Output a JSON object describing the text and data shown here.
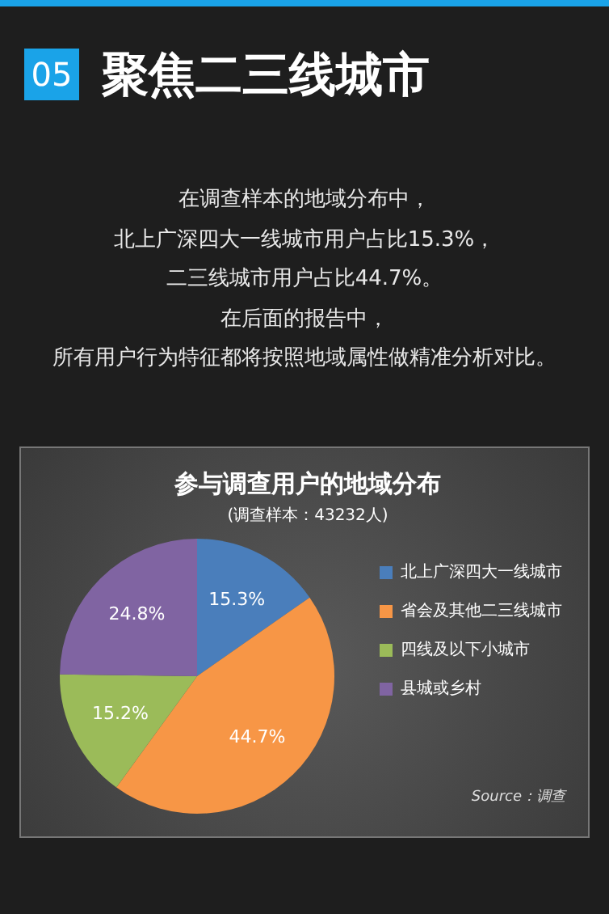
{
  "chart_data": {
    "type": "pie",
    "title": "参与调查用户的地域分布",
    "subtitle": "(调查样本：43232人)",
    "categories": [
      "北上广深四大一线城市",
      "省会及其他二三线城市",
      "四线及以下小城市",
      "县城或乡村"
    ],
    "values": [
      15.3,
      44.7,
      15.2,
      24.8
    ],
    "colors": [
      "#4a7ebb",
      "#f79646",
      "#9bbb59",
      "#8064a2"
    ],
    "value_labels": [
      "15.3%",
      "44.7%",
      "15.2%",
      "24.8%"
    ],
    "legend": "right",
    "annotations": [
      "05",
      "聚焦二三线城市",
      "在调查样本的地域分布中，",
      "北上广深四大一线城市用户占比15.3%，",
      "二三线城市用户占比44.7%。",
      "在后面的报告中，",
      "所有用户行为特征都将按照地域属性做精准分析对比。",
      "Source：调查"
    ]
  }
}
